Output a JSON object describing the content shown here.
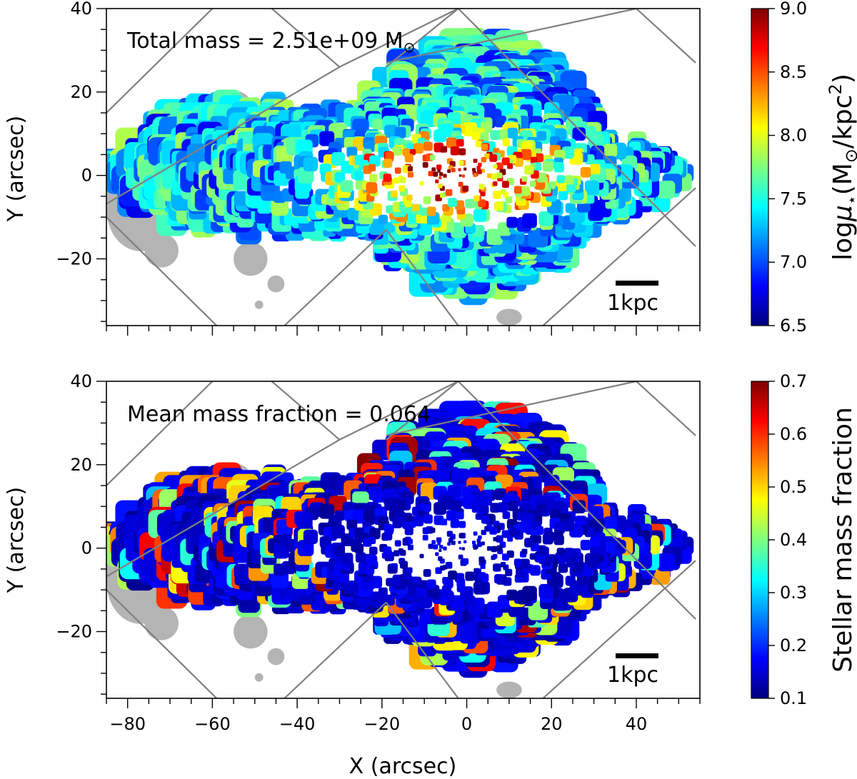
{
  "colors": {
    "background": "#ffffff",
    "frame": "#000000",
    "masked": "#b4b4b4",
    "footprint": "#808080",
    "colormap": [
      "#00007f",
      "#0000ff",
      "#007fff",
      "#00ffff",
      "#7fff7f",
      "#ffff00",
      "#ff7f00",
      "#ff0000",
      "#7f0000"
    ]
  },
  "chart_data": [
    {
      "id": "top",
      "type": "heatmap",
      "description": "Voronoi-binned stellar mass surface density map",
      "xlabel": "",
      "ylabel": "Y (arcsec)",
      "xlim": [
        -85,
        55
      ],
      "ylim": [
        -36,
        40
      ],
      "xticks": [
        -80,
        -60,
        -40,
        -20,
        0,
        20,
        40
      ],
      "xtick_labels": [],
      "yticks": [
        -20,
        0,
        20,
        40
      ],
      "ytick_labels": [
        "−20",
        "0",
        "20",
        "40"
      ],
      "annotation": {
        "main": "Total mass = 2.51e+09 M",
        "sub": "⊙"
      },
      "scalebar_label": "1kpc",
      "colorbar": {
        "label_pre": "log",
        "label_mu": "μ",
        "label_star": "⋆",
        "label_open": "(M",
        "label_sun": "⊙",
        "label_mid": "/kpc",
        "label_sup": "2",
        "label_close": ")",
        "min": 6.5,
        "max": 9.0,
        "ticks": [
          6.5,
          7.0,
          7.5,
          8.0,
          8.5,
          9.0
        ],
        "tick_labels": [
          "6.5",
          "7.0",
          "7.5",
          "8.0",
          "8.5",
          "9.0"
        ]
      },
      "field": {
        "center_value": 9.0,
        "outer_value": 7.1
      }
    },
    {
      "id": "bottom",
      "type": "heatmap",
      "description": "Voronoi-binned stellar mass fraction map",
      "xlabel": "X (arcsec)",
      "ylabel": "Y (arcsec)",
      "xlim": [
        -85,
        55
      ],
      "ylim": [
        -36,
        40
      ],
      "xticks": [
        -80,
        -60,
        -40,
        -20,
        0,
        20,
        40
      ],
      "xtick_labels": [
        "−80",
        "−60",
        "−40",
        "−20",
        "0",
        "20",
        "40"
      ],
      "yticks": [
        -20,
        0,
        20,
        40
      ],
      "ytick_labels": [
        "−20",
        "0",
        "20",
        "40"
      ],
      "annotation": {
        "main": "Mean mass fraction = 0.064",
        "sub": ""
      },
      "scalebar_label": "1kpc",
      "colorbar": {
        "label": "Stellar mass fraction",
        "min": 0.1,
        "max": 0.7,
        "ticks": [
          0.1,
          0.2,
          0.3,
          0.4,
          0.5,
          0.6,
          0.7
        ],
        "tick_labels": [
          "0.1",
          "0.2",
          "0.3",
          "0.4",
          "0.5",
          "0.6",
          "0.7"
        ]
      },
      "field": {
        "mean": 0.064
      }
    }
  ]
}
